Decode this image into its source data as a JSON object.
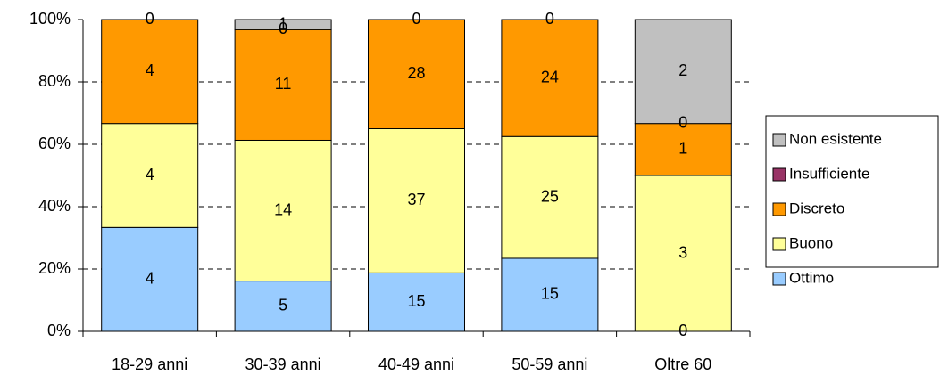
{
  "chart_data": {
    "type": "bar",
    "stacking": "percent",
    "categories": [
      "18-29 anni",
      "30-39 anni",
      "40-49 anni",
      "50-59 anni",
      "Oltre 60"
    ],
    "series": [
      {
        "name": "Ottimo",
        "color": "#99ccff",
        "values": [
          4,
          5,
          15,
          15,
          0
        ]
      },
      {
        "name": "Buono",
        "color": "#ffff99",
        "values": [
          4,
          14,
          37,
          25,
          3
        ]
      },
      {
        "name": "Discreto",
        "color": "#ff9900",
        "values": [
          4,
          11,
          28,
          24,
          1
        ]
      },
      {
        "name": "Insufficiente",
        "color": "#993366",
        "values": [
          0,
          0,
          0,
          0,
          0
        ]
      },
      {
        "name": "Non esistente",
        "color": "#c0c0c0",
        "values": [
          0,
          1,
          0,
          0,
          2
        ]
      }
    ],
    "ylim": [
      0,
      100
    ],
    "yticks": [
      {
        "value": 0,
        "label": "0%"
      },
      {
        "value": 20,
        "label": "20%"
      },
      {
        "value": 40,
        "label": "40%"
      },
      {
        "value": 60,
        "label": "60%"
      },
      {
        "value": 80,
        "label": "80%"
      },
      {
        "value": 100,
        "label": "100%"
      }
    ],
    "grid": true,
    "legend": "right"
  }
}
